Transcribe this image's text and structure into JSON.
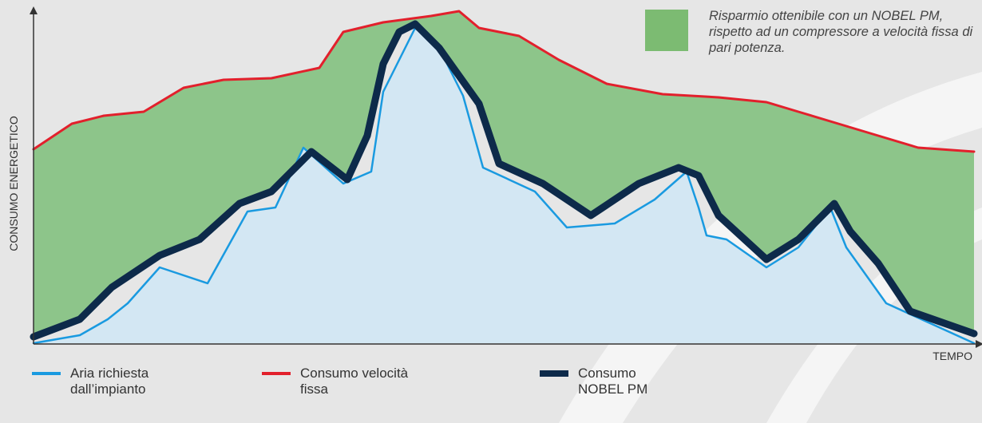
{
  "chart_data": {
    "type": "line",
    "y_label": "CONSUMO ENERGETICO",
    "x_label": "TEMPO",
    "annotation": "Risparmio ottenibile con un NOBEL PM, rispetto ad un compressore a velocità fissa di pari potenza.",
    "xlim": [
      0,
      1178
    ],
    "ylim": [
      0,
      420
    ],
    "fill_color": "#8dc58a",
    "series": [
      {
        "name": "Aria richiesta dall’impianto",
        "color": "#1a9ae0",
        "x": [
          0,
          58,
          93,
          118,
          158,
          218,
          268,
          303,
          338,
          388,
          423,
          438,
          478,
          508,
          538,
          563,
          628,
          668,
          728,
          778,
          818,
          833,
          843,
          868,
          918,
          958,
          998,
          1018,
          1068,
          1178
        ],
        "values": [
          0,
          10,
          30,
          50,
          95,
          75,
          165,
          170,
          245,
          200,
          215,
          315,
          395,
          370,
          310,
          220,
          190,
          145,
          150,
          180,
          215,
          170,
          135,
          130,
          95,
          120,
          170,
          120,
          50,
          0
        ]
      },
      {
        "name": "Consumo velocità fissa",
        "color": "#e2202c",
        "x": [
          0,
          48,
          88,
          138,
          188,
          238,
          298,
          358,
          388,
          438,
          498,
          533,
          558,
          608,
          658,
          718,
          788,
          858,
          918,
          958,
          1008,
          1058,
          1108,
          1178
        ],
        "values": [
          243,
          275,
          285,
          290,
          320,
          330,
          332,
          345,
          390,
          402,
          410,
          416,
          395,
          385,
          355,
          325,
          312,
          308,
          302,
          290,
          275,
          260,
          245,
          240
        ]
      },
      {
        "name": "Consumo NOBEL PM",
        "color": "#0d2a4a",
        "x": [
          0,
          58,
          98,
          158,
          208,
          258,
          298,
          348,
          393,
          418,
          438,
          458,
          478,
          508,
          558,
          583,
          638,
          698,
          758,
          808,
          833,
          858,
          918,
          958,
          1003,
          1023,
          1058,
          1098,
          1178
        ],
        "values": [
          8,
          30,
          70,
          110,
          130,
          175,
          190,
          240,
          205,
          260,
          350,
          390,
          400,
          370,
          300,
          225,
          200,
          160,
          200,
          220,
          210,
          160,
          105,
          130,
          175,
          140,
          100,
          40,
          12
        ]
      }
    ]
  }
}
